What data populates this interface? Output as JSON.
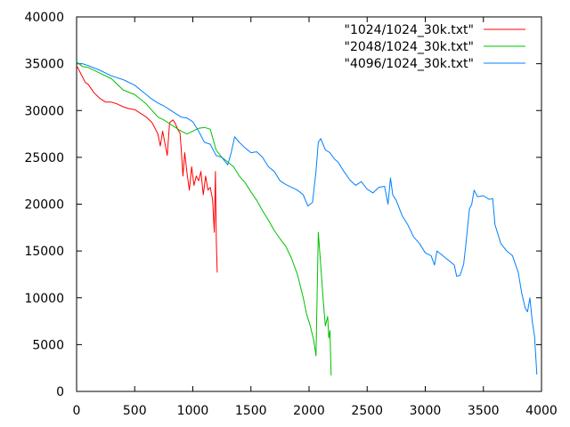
{
  "chart_data": {
    "type": "line",
    "title": "",
    "xlabel": "",
    "ylabel": "",
    "xlim": [
      0,
      4000
    ],
    "ylim": [
      0,
      40000
    ],
    "xticks": [
      0,
      500,
      1000,
      1500,
      2000,
      2500,
      3000,
      3500,
      4000
    ],
    "yticks": [
      0,
      5000,
      10000,
      15000,
      20000,
      25000,
      30000,
      35000,
      40000
    ],
    "grid": false,
    "legend_position": "top-right",
    "series": [
      {
        "name": "\"1024/1024_30k.txt\"",
        "color": "#ff0000",
        "points": [
          [
            0,
            34800
          ],
          [
            25,
            34200
          ],
          [
            50,
            33600
          ],
          [
            75,
            33000
          ],
          [
            100,
            32800
          ],
          [
            150,
            31900
          ],
          [
            200,
            31300
          ],
          [
            250,
            30900
          ],
          [
            300,
            30900
          ],
          [
            350,
            30700
          ],
          [
            400,
            30400
          ],
          [
            450,
            30200
          ],
          [
            500,
            30100
          ],
          [
            550,
            29700
          ],
          [
            600,
            29300
          ],
          [
            650,
            28700
          ],
          [
            700,
            27500
          ],
          [
            720,
            26200
          ],
          [
            740,
            27800
          ],
          [
            760,
            26500
          ],
          [
            780,
            25200
          ],
          [
            800,
            28700
          ],
          [
            830,
            29000
          ],
          [
            850,
            28600
          ],
          [
            870,
            28000
          ],
          [
            890,
            27600
          ],
          [
            900,
            26000
          ],
          [
            915,
            23000
          ],
          [
            930,
            25500
          ],
          [
            950,
            23300
          ],
          [
            970,
            21500
          ],
          [
            990,
            24000
          ],
          [
            1010,
            22000
          ],
          [
            1030,
            23000
          ],
          [
            1050,
            22500
          ],
          [
            1070,
            23500
          ],
          [
            1090,
            21000
          ],
          [
            1110,
            23000
          ],
          [
            1130,
            21500
          ],
          [
            1150,
            21800
          ],
          [
            1170,
            20500
          ],
          [
            1185,
            17000
          ],
          [
            1195,
            23500
          ],
          [
            1202,
            16000
          ],
          [
            1210,
            12700
          ]
        ]
      },
      {
        "name": "\"2048/1024_30k.txt\"",
        "color": "#00c000",
        "points": [
          [
            0,
            35200
          ],
          [
            50,
            34700
          ],
          [
            100,
            34600
          ],
          [
            200,
            34000
          ],
          [
            300,
            33400
          ],
          [
            400,
            32200
          ],
          [
            500,
            31700
          ],
          [
            550,
            31200
          ],
          [
            600,
            30700
          ],
          [
            650,
            30000
          ],
          [
            700,
            29300
          ],
          [
            750,
            29000
          ],
          [
            800,
            28600
          ],
          [
            850,
            28200
          ],
          [
            900,
            27800
          ],
          [
            950,
            27500
          ],
          [
            1000,
            27800
          ],
          [
            1050,
            28100
          ],
          [
            1100,
            28200
          ],
          [
            1150,
            28000
          ],
          [
            1200,
            25800
          ],
          [
            1250,
            25000
          ],
          [
            1300,
            24500
          ],
          [
            1350,
            24000
          ],
          [
            1400,
            23000
          ],
          [
            1450,
            22300
          ],
          [
            1500,
            21300
          ],
          [
            1550,
            20400
          ],
          [
            1600,
            19300
          ],
          [
            1650,
            18300
          ],
          [
            1700,
            17200
          ],
          [
            1750,
            16300
          ],
          [
            1800,
            15500
          ],
          [
            1850,
            14200
          ],
          [
            1900,
            12500
          ],
          [
            1950,
            10000
          ],
          [
            1980,
            8200
          ],
          [
            2010,
            7000
          ],
          [
            2040,
            5500
          ],
          [
            2060,
            3800
          ],
          [
            2080,
            17000
          ],
          [
            2100,
            13500
          ],
          [
            2120,
            10000
          ],
          [
            2140,
            7000
          ],
          [
            2160,
            8000
          ],
          [
            2170,
            5700
          ],
          [
            2180,
            6500
          ],
          [
            2190,
            1700
          ]
        ]
      },
      {
        "name": "\"4096/1024_30k.txt\"",
        "color": "#0080ff",
        "points": [
          [
            0,
            35000
          ],
          [
            50,
            35000
          ],
          [
            100,
            34800
          ],
          [
            200,
            34300
          ],
          [
            300,
            33700
          ],
          [
            400,
            33300
          ],
          [
            500,
            32700
          ],
          [
            550,
            32200
          ],
          [
            600,
            31700
          ],
          [
            650,
            31200
          ],
          [
            700,
            30800
          ],
          [
            750,
            30500
          ],
          [
            800,
            30100
          ],
          [
            850,
            29700
          ],
          [
            900,
            29300
          ],
          [
            950,
            29200
          ],
          [
            1000,
            28800
          ],
          [
            1050,
            27800
          ],
          [
            1100,
            26600
          ],
          [
            1150,
            26400
          ],
          [
            1200,
            25200
          ],
          [
            1250,
            25000
          ],
          [
            1300,
            24200
          ],
          [
            1330,
            25500
          ],
          [
            1360,
            27200
          ],
          [
            1400,
            26600
          ],
          [
            1450,
            26000
          ],
          [
            1500,
            25500
          ],
          [
            1550,
            25600
          ],
          [
            1600,
            25000
          ],
          [
            1650,
            24000
          ],
          [
            1700,
            23500
          ],
          [
            1750,
            22500
          ],
          [
            1800,
            22100
          ],
          [
            1850,
            21800
          ],
          [
            1900,
            21500
          ],
          [
            1950,
            21000
          ],
          [
            1990,
            19800
          ],
          [
            2030,
            20200
          ],
          [
            2060,
            23500
          ],
          [
            2080,
            26600
          ],
          [
            2100,
            27000
          ],
          [
            2140,
            25800
          ],
          [
            2180,
            25500
          ],
          [
            2220,
            24800
          ],
          [
            2250,
            24500
          ],
          [
            2300,
            23500
          ],
          [
            2350,
            22600
          ],
          [
            2400,
            22000
          ],
          [
            2450,
            22400
          ],
          [
            2500,
            21600
          ],
          [
            2550,
            21200
          ],
          [
            2600,
            21800
          ],
          [
            2650,
            21900
          ],
          [
            2680,
            20000
          ],
          [
            2700,
            22800
          ],
          [
            2720,
            21000
          ],
          [
            2750,
            20400
          ],
          [
            2800,
            18800
          ],
          [
            2850,
            17800
          ],
          [
            2900,
            16500
          ],
          [
            2950,
            15800
          ],
          [
            3000,
            14800
          ],
          [
            3050,
            14500
          ],
          [
            3080,
            13500
          ],
          [
            3100,
            15000
          ],
          [
            3150,
            14500
          ],
          [
            3200,
            14000
          ],
          [
            3250,
            13500
          ],
          [
            3270,
            12300
          ],
          [
            3300,
            12400
          ],
          [
            3330,
            13600
          ],
          [
            3350,
            15800
          ],
          [
            3380,
            19500
          ],
          [
            3400,
            20000
          ],
          [
            3420,
            21500
          ],
          [
            3450,
            20800
          ],
          [
            3500,
            20900
          ],
          [
            3550,
            20500
          ],
          [
            3580,
            20600
          ],
          [
            3600,
            17800
          ],
          [
            3650,
            15800
          ],
          [
            3700,
            15000
          ],
          [
            3750,
            14500
          ],
          [
            3800,
            12700
          ],
          [
            3830,
            10500
          ],
          [
            3860,
            8900
          ],
          [
            3880,
            8500
          ],
          [
            3900,
            10000
          ],
          [
            3920,
            7500
          ],
          [
            3940,
            5900
          ],
          [
            3960,
            1800
          ]
        ]
      }
    ]
  }
}
